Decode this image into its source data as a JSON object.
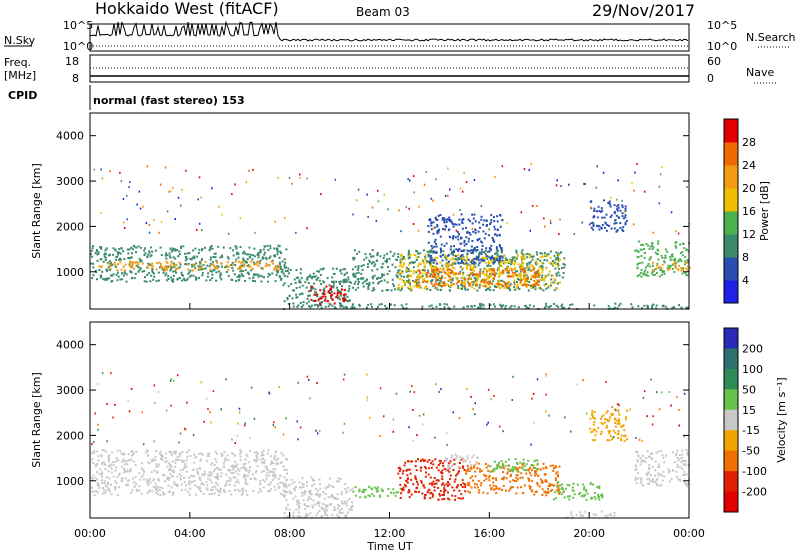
{
  "header": {
    "title": "Hokkaido West (fitACF)",
    "beam": "Beam 03",
    "date": "29/Nov/2017"
  },
  "status_panels": {
    "nsky_label": "N.Sky",
    "nsearch_label": "N.Search",
    "noise_ticks": [
      "10^5",
      "10^0"
    ],
    "freq_label_1": "Freq.",
    "freq_label_2": "[MHz]",
    "freq_ticks": [
      "18",
      "8"
    ],
    "nave_label": "Nave",
    "nave_ticks": [
      "60",
      "0"
    ],
    "cpid_label": "CPID",
    "cpid_text": "normal (fast stereo) 153"
  },
  "chart_data": [
    {
      "type": "heatmap",
      "name": "Power",
      "ylabel": "Slant Range [km]",
      "xlabel": "Time UT",
      "x_ticks": [
        "00:00",
        "04:00",
        "08:00",
        "12:00",
        "16:00",
        "20:00",
        "00:00"
      ],
      "x_range_hours": [
        0,
        24
      ],
      "y_ticks": [
        1000,
        2000,
        3000,
        4000
      ],
      "ylim": [
        180,
        4500
      ],
      "colorbar_label": "Power [dB]",
      "colorbar_ticks": [
        4,
        8,
        12,
        16,
        20,
        24,
        28
      ],
      "colorbar_colors": [
        "#2020e6",
        "#2a4fb0",
        "#3a8a6a",
        "#4caf50",
        "#f0c000",
        "#f39c12",
        "#f06a00",
        "#e20000"
      ],
      "colorbar_range": [
        0,
        32
      ],
      "echo_regions": [
        {
          "t0": 0.0,
          "t1": 7.9,
          "r0": 800,
          "r1": 1600,
          "level": 10
        },
        {
          "t0": 0.2,
          "t1": 7.6,
          "r0": 1050,
          "r1": 1250,
          "level": 20
        },
        {
          "t0": 7.7,
          "t1": 10.5,
          "r0": 200,
          "r1": 1100,
          "level": 8
        },
        {
          "t0": 8.8,
          "t1": 10.2,
          "r0": 300,
          "r1": 700,
          "level": 28
        },
        {
          "t0": 10.5,
          "t1": 19.0,
          "r0": 600,
          "r1": 1500,
          "level": 8
        },
        {
          "t0": 12.3,
          "t1": 18.8,
          "r0": 650,
          "r1": 1400,
          "level": 18
        },
        {
          "t0": 13.0,
          "t1": 18.0,
          "r0": 700,
          "r1": 1100,
          "level": 26
        },
        {
          "t0": 10.0,
          "t1": 24.0,
          "r0": 200,
          "r1": 320,
          "level": 8
        },
        {
          "t0": 21.8,
          "t1": 24.0,
          "r0": 900,
          "r1": 1700,
          "level": 12
        },
        {
          "t0": 22.5,
          "t1": 24.0,
          "r0": 1050,
          "r1": 1250,
          "level": 22
        },
        {
          "t0": 20.0,
          "t1": 21.5,
          "r0": 1900,
          "r1": 2600,
          "level": 6
        },
        {
          "t0": 13.5,
          "t1": 16.5,
          "r0": 1200,
          "r1": 2300,
          "level": 4
        }
      ]
    },
    {
      "type": "heatmap",
      "name": "Velocity",
      "ylabel": "Slant Range [km]",
      "xlabel": "Time UT",
      "x_ticks": [
        "00:00",
        "04:00",
        "08:00",
        "12:00",
        "16:00",
        "20:00",
        "00:00"
      ],
      "x_range_hours": [
        0,
        24
      ],
      "y_ticks": [
        1000,
        2000,
        3000,
        4000
      ],
      "ylim": [
        180,
        4500
      ],
      "colorbar_label": "Velocity [m s⁻¹]",
      "colorbar_ticks": [
        "200",
        "100",
        "50",
        "15",
        "-15",
        "-50",
        "-100",
        "-200"
      ],
      "colorbar_colors": [
        "#2a2ab8",
        "#2e6f6f",
        "#2e8b57",
        "#66c24a",
        "#c8c8c8",
        "#f2a400",
        "#f07000",
        "#e02000",
        "#e00000"
      ],
      "echo_regions": [
        {
          "t0": 0.0,
          "t1": 7.9,
          "r0": 700,
          "r1": 1700,
          "vel": 0
        },
        {
          "t0": 7.7,
          "t1": 10.5,
          "r0": 200,
          "r1": 1100,
          "vel": 0
        },
        {
          "t0": 10.5,
          "t1": 12.5,
          "r0": 650,
          "r1": 900,
          "vel": 40
        },
        {
          "t0": 12.3,
          "t1": 15.0,
          "r0": 600,
          "r1": 1500,
          "vel": -150
        },
        {
          "t0": 14.2,
          "t1": 15.5,
          "r0": 1200,
          "r1": 1600,
          "vel": 0
        },
        {
          "t0": 15.0,
          "t1": 18.8,
          "r0": 700,
          "r1": 1400,
          "vel": -80
        },
        {
          "t0": 16.0,
          "t1": 18.0,
          "r0": 1200,
          "r1": 1500,
          "vel": 40
        },
        {
          "t0": 18.5,
          "t1": 20.5,
          "r0": 600,
          "r1": 1000,
          "vel": 40
        },
        {
          "t0": 19.0,
          "t1": 21.0,
          "r0": 200,
          "r1": 350,
          "vel": 0
        },
        {
          "t0": 21.8,
          "t1": 24.0,
          "r0": 900,
          "r1": 1700,
          "vel": 0
        },
        {
          "t0": 20.0,
          "t1": 21.5,
          "r0": 1900,
          "r1": 2600,
          "vel": -30
        }
      ]
    }
  ]
}
